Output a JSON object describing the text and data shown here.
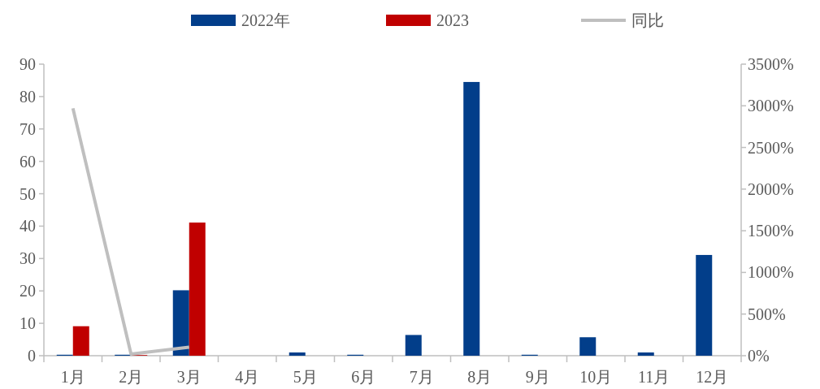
{
  "chart_data": {
    "type": "bar",
    "categories": [
      "1月",
      "2月",
      "3月",
      "4月",
      "5月",
      "6月",
      "7月",
      "8月",
      "9月",
      "10月",
      "11月",
      "12月"
    ],
    "series": [
      {
        "name": "2022年",
        "color": "#023e8a",
        "values": [
          0.3,
          0.3,
          20.2,
          0,
          1.0,
          0.3,
          6.4,
          84.5,
          0.3,
          5.7,
          1.0,
          31.1
        ]
      },
      {
        "name": "2023",
        "color": "#c00000",
        "values": [
          9.1,
          0.2,
          41.1,
          null,
          null,
          null,
          null,
          null,
          null,
          null,
          null,
          null
        ]
      },
      {
        "name": "同比",
        "type": "line",
        "axis": "y2",
        "color": "#bfbfbf",
        "values": [
          2970,
          20,
          103,
          null,
          null,
          null,
          null,
          null,
          null,
          null,
          null,
          null
        ]
      }
    ],
    "ylim": [
      0,
      90
    ],
    "yticks": [
      0,
      10,
      20,
      30,
      40,
      50,
      60,
      70,
      80,
      90
    ],
    "y2lim": [
      0,
      3500
    ],
    "y2ticks": [
      {
        "value": 0,
        "label": "0%"
      },
      {
        "value": 500,
        "label": "500%"
      },
      {
        "value": 1000,
        "label": "1000%"
      },
      {
        "value": 1500,
        "label": "1500%"
      },
      {
        "value": 2000,
        "label": "2000%"
      },
      {
        "value": 2500,
        "label": "2500%"
      },
      {
        "value": 3000,
        "label": "3000%"
      },
      {
        "value": 3500,
        "label": "3500%"
      }
    ],
    "legend": "top",
    "marker": "none",
    "line_style": "solid"
  }
}
